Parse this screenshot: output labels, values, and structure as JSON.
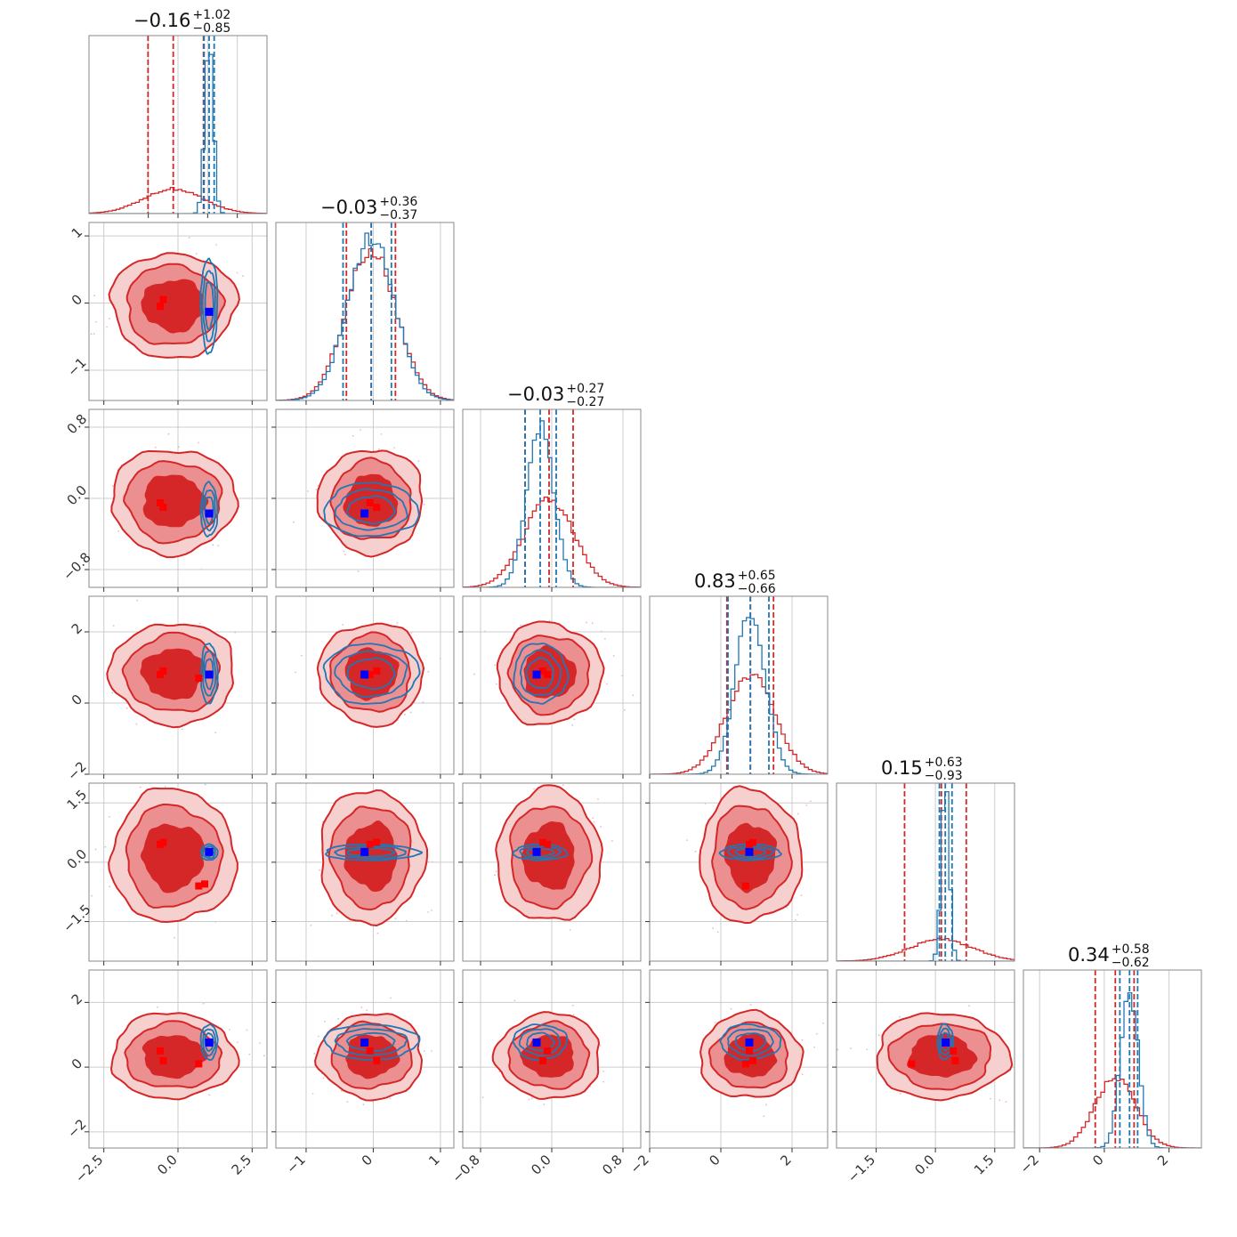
{
  "colors": {
    "red": "#d62728",
    "red_mid": "#ec8f90",
    "red_light": "#f6cfcf",
    "blue": "#1f77b4",
    "blue_marker": "#0000ff",
    "red_marker": "#ff0000",
    "grid": "#cccccc",
    "frame": "#8a8a8a"
  },
  "chart_data": {
    "type": "corner",
    "n_params": 6,
    "grid": true,
    "ticks": [
      {
        "values": [
          -2.5,
          0.0,
          2.5
        ],
        "labels": [
          "−2.5",
          "0.0",
          "2.5"
        ],
        "range": [
          -3.0,
          3.0
        ],
        "hist_ticks": [
          -1.0,
          0.0,
          1.0,
          2.0
        ]
      },
      {
        "values": [
          -1,
          0,
          1
        ],
        "labels": [
          "−1",
          "0",
          "1"
        ],
        "range": [
          -1.45,
          1.2
        ]
      },
      {
        "values": [
          -0.8,
          0.0,
          0.8
        ],
        "labels": [
          "−0.8",
          "0.0",
          "0.8"
        ],
        "range": [
          -1.0,
          1.0
        ]
      },
      {
        "values": [
          -2,
          0,
          2
        ],
        "labels": [
          "−2",
          "0",
          "2"
        ],
        "range": [
          -2.0,
          3.0
        ]
      },
      {
        "values": [
          -1.5,
          0.0,
          1.5
        ],
        "labels": [
          "−1.5",
          "0.0",
          "1.5"
        ],
        "range": [
          -2.5,
          2.0
        ]
      },
      {
        "values": [
          -2,
          0,
          2
        ],
        "labels": [
          "−2",
          "0",
          "2"
        ],
        "range": [
          -2.5,
          3.0
        ]
      }
    ],
    "titles": [
      {
        "median": "−0.16",
        "plus": "+1.02",
        "minus": "−0.85"
      },
      {
        "median": "−0.03",
        "plus": "+0.36",
        "minus": "−0.37"
      },
      {
        "median": "−0.03",
        "plus": "+0.27",
        "minus": "−0.27"
      },
      {
        "median": "0.83",
        "plus": "+0.65",
        "minus": "−0.66"
      },
      {
        "median": "0.15",
        "plus": "+0.63",
        "minus": "−0.93"
      },
      {
        "median": "0.34",
        "plus": "+0.58",
        "minus": "−0.62"
      }
    ],
    "series": [
      {
        "color": "red",
        "means": [
          -0.16,
          -0.03,
          -0.03,
          0.83,
          0.15,
          0.34
        ],
        "sds": [
          1.0,
          0.37,
          0.28,
          0.68,
          0.8,
          0.63
        ],
        "quantiles": [
          [
            -1.01,
            0.86
          ],
          [
            -0.4,
            0.33
          ],
          [
            -0.3,
            0.24
          ],
          [
            0.17,
            1.48
          ],
          [
            -0.78,
            0.78
          ],
          [
            -0.28,
            0.92
          ]
        ]
      },
      {
        "color": "blue",
        "means": [
          1.05,
          -0.03,
          -0.13,
          0.83,
          0.25,
          0.78
        ],
        "sds": [
          0.14,
          0.35,
          0.15,
          0.42,
          0.1,
          0.27
        ],
        "quantiles": [
          [
            0.88,
            1.22
          ],
          [
            -0.45,
            0.27
          ],
          [
            -0.3,
            0.05
          ],
          [
            0.2,
            1.35
          ],
          [
            0.1,
            0.42
          ],
          [
            0.48,
            1.03
          ]
        ]
      }
    ],
    "truth_blue": [
      1.05,
      -0.13,
      -0.17,
      0.8,
      0.26,
      0.76
    ],
    "truth_red": [
      [
        -0.6,
        -0.5,
        0.7,
        0.9
      ],
      [
        -0.05,
        0.05
      ],
      [
        -0.05,
        -0.1
      ],
      [
        0.8,
        0.9,
        0.7
      ],
      [
        0.45,
        0.5,
        -0.6,
        -0.55
      ],
      [
        0.5,
        0.2,
        0.1
      ]
    ]
  }
}
